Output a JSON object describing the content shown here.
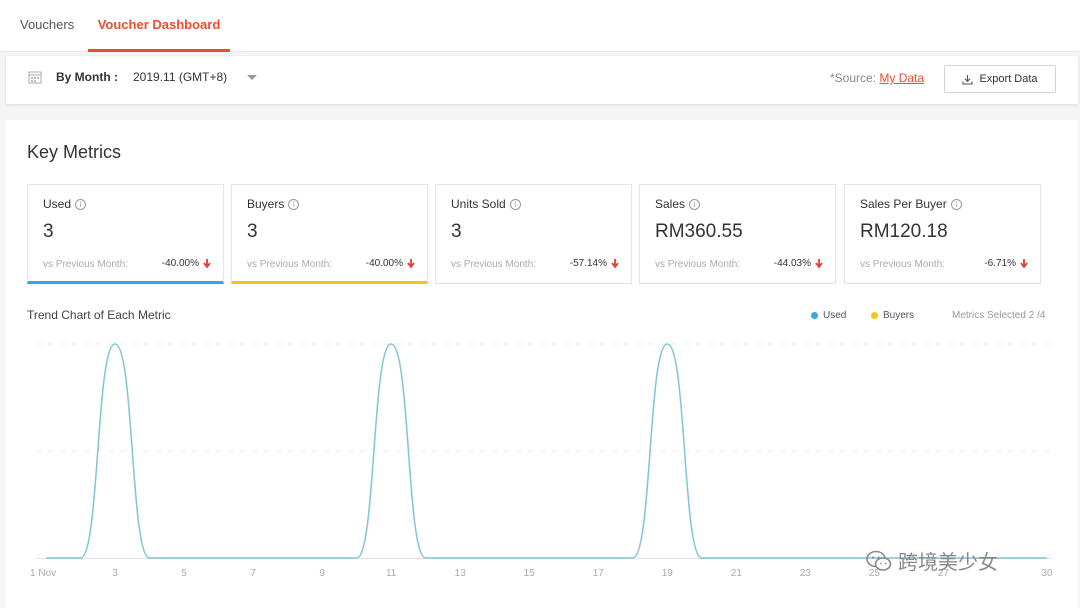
{
  "tabs": [
    {
      "label": "Vouchers"
    },
    {
      "label": "Voucher Dashboard"
    }
  ],
  "filter": {
    "period_label": "By Month :",
    "period_value": "2019.11 (GMT+8)",
    "source_prefix": "*Source:",
    "source_link": "My Data",
    "export_label": "Export Data"
  },
  "key_metrics": {
    "title": "Key Metrics",
    "vs_label": "vs Previous Month:",
    "items": [
      {
        "label": "Used",
        "value": "3",
        "change": "-40.00%"
      },
      {
        "label": "Buyers",
        "value": "3",
        "change": "-40.00%"
      },
      {
        "label": "Units Sold",
        "value": "3",
        "change": "-57.14%"
      },
      {
        "label": "Sales",
        "value": "RM360.55",
        "change": "-44.03%"
      },
      {
        "label": "Sales Per Buyer",
        "value": "RM120.18",
        "change": "-6.71%"
      }
    ]
  },
  "trend": {
    "title": "Trend Chart of Each Metric",
    "legend": [
      {
        "name": "Used",
        "color": "#3ba3e8"
      },
      {
        "name": "Buyers",
        "color": "#f5c518"
      }
    ],
    "metrics_selected": "Metrics Selected 2 /4"
  },
  "chart_data": {
    "type": "line",
    "x": [
      1,
      2,
      3,
      4,
      5,
      6,
      7,
      8,
      9,
      10,
      11,
      12,
      13,
      14,
      15,
      16,
      17,
      18,
      19,
      20,
      21,
      22,
      23,
      24,
      25,
      26,
      27,
      28,
      29,
      30
    ],
    "x_tick_labels": [
      "1 Nov",
      "3",
      "5",
      "7",
      "9",
      "11",
      "13",
      "15",
      "17",
      "19",
      "21",
      "23",
      "25",
      "27",
      "30"
    ],
    "series": [
      {
        "name": "Used",
        "color": "#3ba3e8",
        "values": [
          0,
          0,
          1,
          0,
          0,
          0,
          0,
          0,
          0,
          0,
          1,
          0,
          0,
          0,
          0,
          0,
          0,
          0,
          1,
          0,
          0,
          0,
          0,
          0,
          0,
          0,
          0,
          0,
          0,
          0
        ]
      },
      {
        "name": "Buyers",
        "color": "#f5c518",
        "values": [
          0,
          0,
          1,
          0,
          0,
          0,
          0,
          0,
          0,
          0,
          1,
          0,
          0,
          0,
          0,
          0,
          0,
          0,
          1,
          0,
          0,
          0,
          0,
          0,
          0,
          0,
          0,
          0,
          0,
          0
        ]
      }
    ],
    "ylim": [
      0,
      1
    ],
    "grid": true
  },
  "watermark": "跨境美少女",
  "colors": {
    "accent": "#ee4d2d",
    "down": "#e53935"
  }
}
